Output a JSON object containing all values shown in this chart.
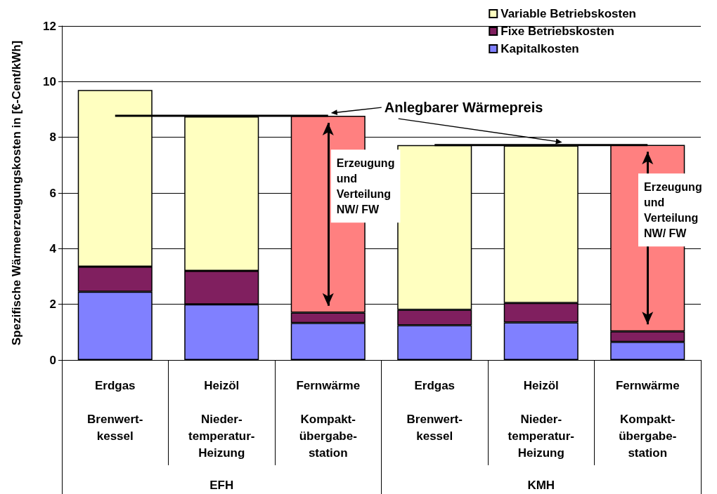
{
  "chart_data": {
    "type": "bar",
    "stacked": true,
    "ylabel": "Spezifische Wärmeerzeugungskosten in [€-Cent/kWh]",
    "categories": [
      "Erdgas\n\nBrenwert-\nkessel",
      "Heizöl\n\nNieder-\ntemperatur-\nHeizung",
      "Fernwärme\n\nKompakt-\nübergabe-\nstation",
      "Erdgas\n\nBrenwert-\nkessel",
      "Heizöl\n\nNieder-\ntemperatur-\nHeizung",
      "Fernwärme\n\nKompakt-\nübergabe-\nstation"
    ],
    "series": [
      {
        "name": "Kapitalkosten",
        "color": "#8080ff",
        "values": [
          2.45,
          2.0,
          1.33,
          1.25,
          1.35,
          0.65
        ]
      },
      {
        "name": "Fixe Betriebskosten",
        "color": "#801f5f",
        "values": [
          0.9,
          1.2,
          0.37,
          0.55,
          0.7,
          0.38
        ]
      },
      {
        "name": "Variable Betriebskosten",
        "color": "#ffffc0",
        "values": [
          6.35,
          5.55,
          null,
          5.92,
          5.65,
          null
        ]
      },
      {
        "color": "#ff8080",
        "values": [
          null,
          null,
          7.07,
          null,
          null,
          6.7
        ]
      },
      {
        "type": "line",
        "color": "#000000",
        "values": [
          8.77,
          8.77,
          8.77,
          null,
          null,
          null
        ]
      },
      {
        "type": "line",
        "color": "#000000",
        "values": [
          null,
          null,
          null,
          7.72,
          7.72,
          7.72
        ]
      }
    ],
    "annotations": [
      "Anlegbarer Wärmepreis",
      "Erzeugung\nund\nVerteilung\nNW/ FW",
      "Erzeugung\nund\nVerteilung\nNW/ FW",
      "EFH",
      "KMH"
    ],
    "ylim": [
      0,
      12
    ],
    "yticks": [
      0,
      2,
      4,
      6,
      8,
      10,
      12
    ],
    "grid": "y",
    "legend": "top right",
    "marker": "none",
    "line_style": "solid"
  }
}
